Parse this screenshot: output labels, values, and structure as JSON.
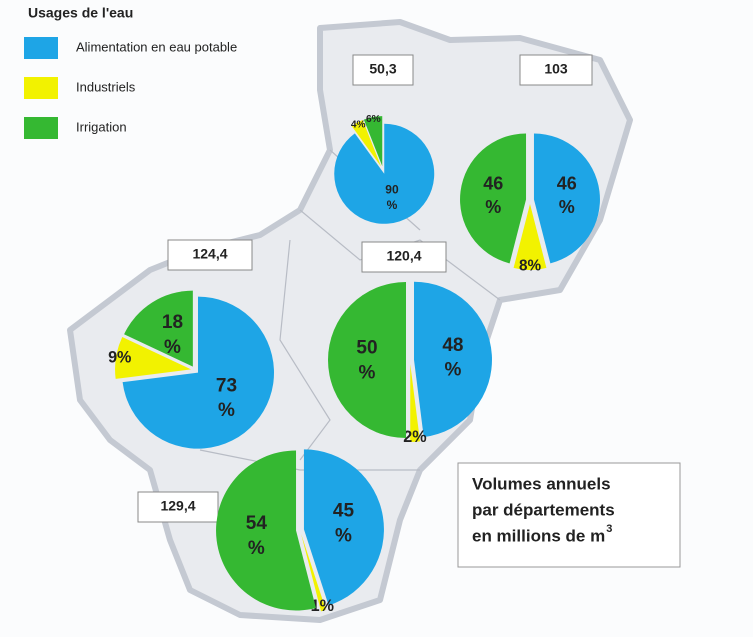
{
  "legend": {
    "title": "Usages de l'eau",
    "items": [
      {
        "name": "Alimentation en eau potable",
        "color": "#1ea5e6"
      },
      {
        "name": "Industriels",
        "color": "#f2f200"
      },
      {
        "name": "Irrigation",
        "color": "#35b832"
      }
    ]
  },
  "note": {
    "lines": [
      "Volumes annuels",
      "par départements",
      "en millions de m"
    ],
    "superscript": "3"
  },
  "chart_data": [
    {
      "type": "pie",
      "title": "50,3",
      "values": [
        90,
        4,
        6
      ],
      "value_labels": [
        "90 %",
        "4%",
        "6%"
      ],
      "colors": [
        "#1ea5e6",
        "#f2f200",
        "#35b832"
      ]
    },
    {
      "type": "pie",
      "title": "103",
      "values": [
        46,
        8,
        46
      ],
      "value_labels": [
        "46 %",
        "8%",
        "46 %"
      ],
      "colors": [
        "#1ea5e6",
        "#f2f200",
        "#35b832"
      ]
    },
    {
      "type": "pie",
      "title": "124,4",
      "values": [
        73,
        9,
        18
      ],
      "value_labels": [
        "73 %",
        "9%",
        "18 %"
      ],
      "colors": [
        "#1ea5e6",
        "#f2f200",
        "#35b832"
      ]
    },
    {
      "type": "pie",
      "title": "120,4",
      "values": [
        48,
        2,
        50
      ],
      "value_labels": [
        "48 %",
        "2%",
        "50 %"
      ],
      "colors": [
        "#1ea5e6",
        "#f2f200",
        "#35b832"
      ]
    },
    {
      "type": "pie",
      "title": "129,4",
      "values": [
        45,
        1,
        54
      ],
      "value_labels": [
        "45 %",
        "1%",
        "54 %"
      ],
      "colors": [
        "#1ea5e6",
        "#f2f200",
        "#35b832"
      ]
    }
  ]
}
